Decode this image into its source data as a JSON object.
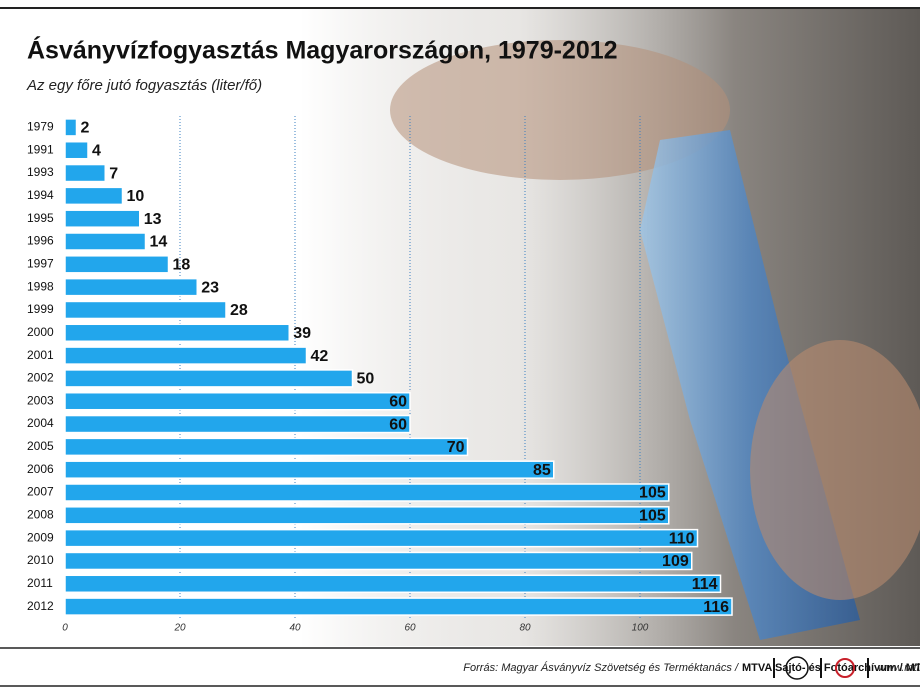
{
  "chart_data": {
    "type": "bar",
    "orientation": "horizontal",
    "title": "Ásványvízfogyasztás Magyarországon, 1979-2012",
    "subtitle": "Az egy főre jutó fogyasztás (liter/fő)",
    "categories": [
      "1979",
      "1991",
      "1993",
      "1994",
      "1995",
      "1996",
      "1997",
      "1998",
      "1999",
      "2000",
      "2001",
      "2002",
      "2003",
      "2004",
      "2005",
      "2006",
      "2007",
      "2008",
      "2009",
      "2010",
      "2011",
      "2012"
    ],
    "values": [
      2,
      4,
      7,
      10,
      13,
      14,
      18,
      23,
      28,
      39,
      42,
      50,
      60,
      60,
      70,
      85,
      105,
      105,
      110,
      109,
      114,
      116
    ],
    "color": "#22a6ec",
    "xlim": [
      0,
      120
    ],
    "xticks": [
      0,
      20,
      40,
      60,
      80,
      100
    ],
    "grid": true,
    "source": "Forrás: Magyar Ásványvíz Szövetség és Terméktanács /",
    "credit": "MTVA Sajtó- és Fotóarchívum / MTI",
    "website": "www.mti.hu"
  }
}
